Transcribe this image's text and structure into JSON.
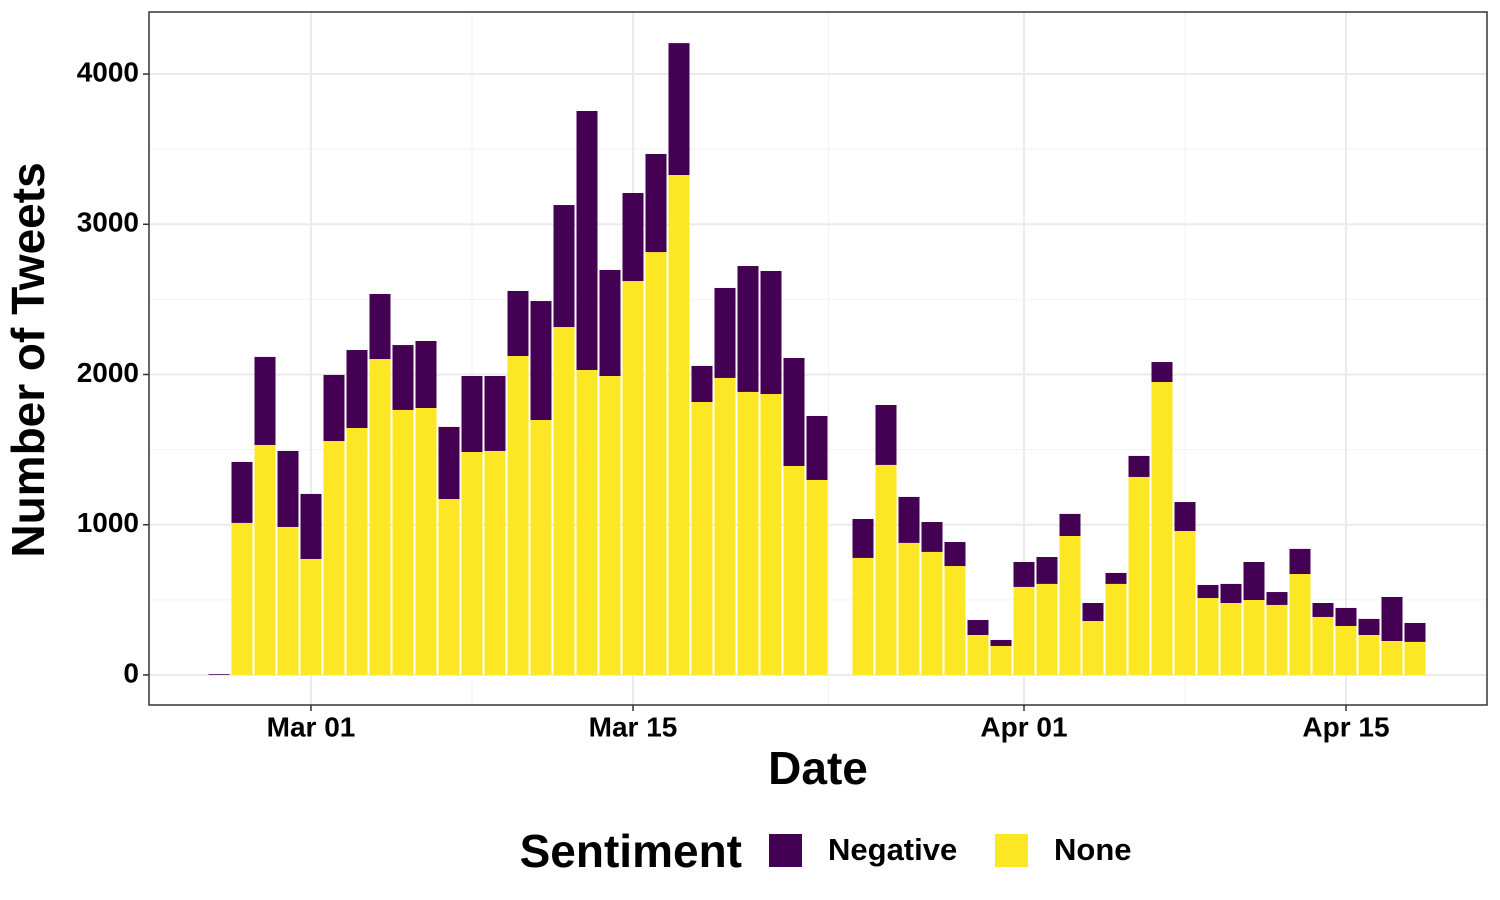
{
  "chart_data": {
    "type": "stacked_bar",
    "x_label": "Date",
    "y_label": "Number of Tweets",
    "legend_title": "Sentiment",
    "legend_position": "bottom",
    "grid": true,
    "x": [
      "Feb 26",
      "Feb 27",
      "Feb 28",
      "Feb 29",
      "Mar 01",
      "Mar 02",
      "Mar 03",
      "Mar 04",
      "Mar 05",
      "Mar 06",
      "Mar 07",
      "Mar 08",
      "Mar 09",
      "Mar 10",
      "Mar 11",
      "Mar 12",
      "Mar 13",
      "Mar 14",
      "Mar 15",
      "Mar 16",
      "Mar 17",
      "Mar 18",
      "Mar 19",
      "Mar 20",
      "Mar 21",
      "Mar 22",
      "Mar 23",
      "Mar 24",
      "Mar 25",
      "Mar 26",
      "Mar 27",
      "Mar 28",
      "Mar 29",
      "Mar 30",
      "Mar 31",
      "Apr 01",
      "Apr 02",
      "Apr 03",
      "Apr 04",
      "Apr 05",
      "Apr 06",
      "Apr 07",
      "Apr 08",
      "Apr 09",
      "Apr 10",
      "Apr 11",
      "Apr 12",
      "Apr 13",
      "Apr 14",
      "Apr 15",
      "Apr 16",
      "Apr 17",
      "Apr 18"
    ],
    "xticks": [
      "Mar 01",
      "Mar 15",
      "Apr 01",
      "Apr 15"
    ],
    "ylim": [
      -200,
      4413
    ],
    "yticks": [
      0,
      1000,
      2000,
      3000,
      4000
    ],
    "yminorticks": [
      500,
      1500,
      2500,
      3500
    ],
    "series": [
      {
        "name": "Negative",
        "color": "#440154",
        "values": [
          5,
          406,
          586,
          506,
          433,
          440,
          519,
          433,
          432,
          446,
          480,
          506,
          499,
          433,
          792,
          812,
          1724,
          706,
          586,
          653,
          878,
          240,
          599,
          838,
          819,
          719,
          426,
          null,
          259,
          399,
          306,
          199,
          160,
          100,
          40,
          166,
          179,
          147,
          120,
          73,
          140,
          133,
          193,
          87,
          127,
          253,
          86,
          167,
          93,
          120,
          107,
          293,
          126
        ]
      },
      {
        "name": "None",
        "color": "#FDE725",
        "values": [
          0,
          1012,
          1531,
          985,
          772,
          1557,
          1644,
          2103,
          1764,
          1777,
          1171,
          1484,
          1491,
          2123,
          1697,
          2316,
          2030,
          1990,
          2622,
          2815,
          3328,
          1817,
          1977,
          1884,
          1870,
          1391,
          1298,
          null,
          779,
          1398,
          879,
          819,
          725,
          266,
          193,
          586,
          606,
          925,
          359,
          606,
          1318,
          1950,
          958,
          512,
          479,
          499,
          466,
          672,
          386,
          326,
          266,
          226,
          220
        ]
      }
    ]
  }
}
